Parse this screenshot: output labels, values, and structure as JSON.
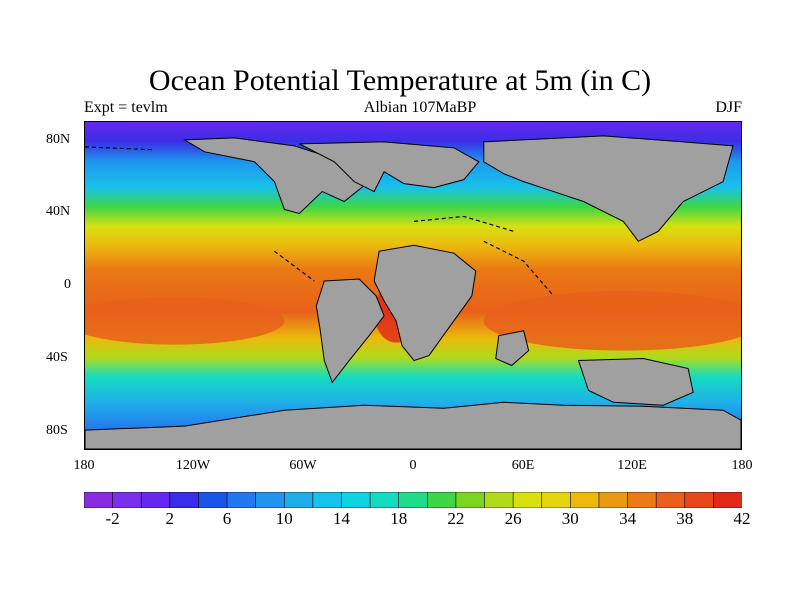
{
  "title": "Ocean Potential Temperature at 5m (in C)",
  "left_label": "Expt = tevlm",
  "center_label": "Albian   107MaBP",
  "right_label": "DJF",
  "lat_ticks": [
    "80N",
    "40N",
    "0",
    "40S",
    "80S"
  ],
  "lon_ticks": [
    "180",
    "120W",
    "60W",
    "0",
    "60E",
    "120E",
    "180"
  ],
  "colorbar": {
    "colors": [
      "#8b2be0",
      "#7a30ea",
      "#6628ee",
      "#3a2ee6",
      "#1a55e8",
      "#2278ee",
      "#1f95ee",
      "#20aeea",
      "#18c2ea",
      "#10d2e0",
      "#14dcc0",
      "#20dc8a",
      "#3ed646",
      "#7ad420",
      "#b0da1a",
      "#d8e010",
      "#e6d410",
      "#ecb80e",
      "#ea9a10",
      "#ea7a14",
      "#e8601a",
      "#e6481c",
      "#e02818"
    ],
    "labels": [
      "-2",
      "2",
      "6",
      "10",
      "14",
      "18",
      "22",
      "26",
      "30",
      "34",
      "38",
      "42"
    ]
  },
  "land_color": "#a0a0a0"
}
